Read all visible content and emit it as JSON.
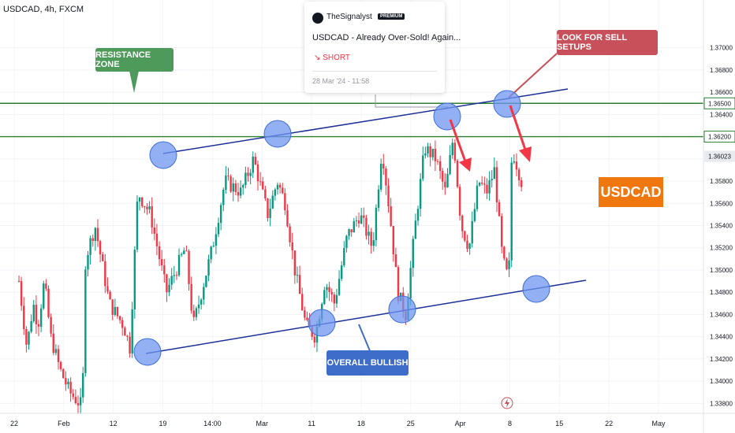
{
  "symbol_header": "USDCAD, 4h, FXCM",
  "idea_popup": {
    "author": "TheSignalyst",
    "badge": "PREMIUM",
    "title": "USDCAD - Already Over-Sold! Again...",
    "direction": "SHORT",
    "date": "28 Mar '24 - 11:58"
  },
  "annotations": {
    "resistance": "RESISTANCE ZONE",
    "sell": "LOOK FOR SELL SETUPS",
    "bullish": "OVERALL BULLISH",
    "ticker": "USDCAD"
  },
  "colors": {
    "up": "#089981",
    "down": "#f23645",
    "trendline": "#1b2f96",
    "zone_line": "#2e7d32",
    "circle": "#6f96f0",
    "arrow": "#f23645",
    "ticker_bg": "#f0760e"
  },
  "chart_data": {
    "type": "candlestick",
    "title": "USDCAD, 4h, FXCM",
    "ylim": [
      1.3371,
      1.3743
    ],
    "y_ticks": [
      "1.37000",
      "1.36800",
      "1.36600",
      "1.36400",
      "1.36200",
      "1.36000",
      "1.35800",
      "1.35600",
      "1.35400",
      "1.35200",
      "1.35000",
      "1.34800",
      "1.34600",
      "1.34400",
      "1.34200",
      "1.34000",
      "1.33800"
    ],
    "x_ticks": [
      "22",
      "Feb",
      "12",
      "19",
      "14:00",
      "Mar",
      "11",
      "18",
      "25",
      "Apr",
      "8",
      "15",
      "22",
      "May"
    ],
    "price_labels": {
      "zone_top": "1.36500",
      "zone_bottom": "1.36200",
      "last": "1.36023"
    },
    "horizontal_levels": [
      1.365,
      1.362
    ],
    "price_path": [
      [
        1.349,
        0.3
      ],
      [
        1.343,
        0.8
      ],
      [
        1.347,
        1.2
      ],
      [
        1.345,
        1.5
      ],
      [
        1.349,
        1.9
      ],
      [
        1.344,
        2.3
      ],
      [
        1.341,
        2.9
      ],
      [
        1.339,
        3.5
      ],
      [
        1.3377,
        4.3
      ],
      [
        1.351,
        4.5
      ],
      [
        1.354,
        5.1
      ],
      [
        1.347,
        6.0
      ],
      [
        1.345,
        6.9
      ],
      [
        1.343,
        7.3
      ],
      [
        1.357,
        7.8
      ],
      [
        1.355,
        8.6
      ],
      [
        1.348,
        9.6
      ],
      [
        1.352,
        10.8
      ],
      [
        1.345,
        11.3
      ],
      [
        1.352,
        12.5
      ],
      [
        1.358,
        13.3
      ],
      [
        1.357,
        14.3
      ],
      [
        1.36,
        15.1
      ],
      [
        1.355,
        16.0
      ],
      [
        1.358,
        16.6
      ],
      [
        1.356,
        17.1
      ],
      [
        1.35,
        17.7
      ],
      [
        1.345,
        18.4
      ],
      [
        1.344,
        19.0
      ],
      [
        1.349,
        19.6
      ],
      [
        1.347,
        20.2
      ],
      [
        1.353,
        21.0
      ],
      [
        1.355,
        21.8
      ],
      [
        1.352,
        22.6
      ],
      [
        1.361,
        23.2
      ],
      [
        1.355,
        23.7
      ],
      [
        1.348,
        24.2
      ],
      [
        1.346,
        24.7
      ],
      [
        1.354,
        25.3
      ],
      [
        1.361,
        25.9
      ],
      [
        1.36,
        26.6
      ],
      [
        1.357,
        27.2
      ],
      [
        1.362,
        27.7
      ],
      [
        1.354,
        28.2
      ],
      [
        1.352,
        28.7
      ],
      [
        1.358,
        29.3
      ],
      [
        1.357,
        29.8
      ],
      [
        1.359,
        30.3
      ],
      [
        1.351,
        30.8
      ],
      [
        1.349,
        31.2
      ],
      [
        1.361,
        31.4
      ],
      [
        1.358,
        32.0
      ]
    ]
  }
}
